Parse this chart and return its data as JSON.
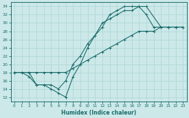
{
  "title": "",
  "xlabel": "Humidex (Indice chaleur)",
  "bg_color": "#cce8e8",
  "line_color": "#1a6b6b",
  "grid_color": "#b0d8d8",
  "xlim": [
    -0.5,
    23.5
  ],
  "ylim": [
    11,
    35
  ],
  "xticks": [
    0,
    1,
    2,
    3,
    4,
    5,
    6,
    7,
    8,
    9,
    10,
    11,
    12,
    13,
    14,
    15,
    16,
    17,
    18,
    19,
    20,
    21,
    22,
    23
  ],
  "yticks": [
    12,
    14,
    16,
    18,
    20,
    22,
    24,
    26,
    28,
    30,
    32,
    34
  ],
  "line1_x": [
    0,
    1,
    2,
    3,
    4,
    5,
    6,
    7,
    8,
    9,
    10,
    11,
    12,
    13,
    14,
    15,
    16,
    17,
    18,
    20,
    21,
    22,
    23
  ],
  "line1_y": [
    18,
    18,
    17,
    15,
    15,
    14,
    13,
    12,
    17,
    20,
    24,
    27,
    30,
    31,
    32,
    33,
    33,
    34,
    34,
    29,
    29,
    29,
    29
  ],
  "line2_x": [
    0,
    1,
    2,
    3,
    4,
    5,
    6,
    7,
    8,
    9,
    10,
    11,
    12,
    13,
    14,
    15,
    16,
    17,
    18,
    19,
    20,
    21,
    22,
    23
  ],
  "line2_y": [
    18,
    18,
    18,
    15,
    15,
    15,
    14,
    16,
    20,
    22,
    25,
    27,
    29,
    32,
    33,
    34,
    34,
    34,
    32,
    29,
    29,
    29,
    29,
    29
  ],
  "line3_x": [
    0,
    1,
    2,
    3,
    4,
    5,
    6,
    7,
    8,
    9,
    10,
    11,
    12,
    13,
    14,
    15,
    16,
    17,
    18,
    19,
    20,
    21,
    22,
    23
  ],
  "line3_y": [
    18,
    18,
    18,
    18,
    18,
    18,
    18,
    18,
    19,
    20,
    21,
    22,
    23,
    24,
    25,
    26,
    27,
    28,
    28,
    28,
    29,
    29,
    29,
    29
  ]
}
